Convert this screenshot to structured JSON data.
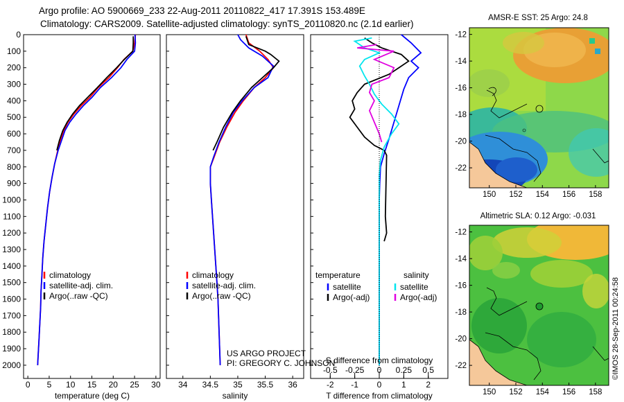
{
  "header": {
    "line1": "Argo profile: AO 5900669_233 22-Aug-2011 20110822_417 17.391S 153.489E",
    "line2": "Climatology: CARS2009. Satellite-adjusted climatology: synTS_20110820.nc (2.1d earlier)"
  },
  "credit": {
    "line1": "US ARGO PROJECT",
    "line2": "PI: GREGORY C. JOHNSON"
  },
  "stamp": "©IMOS 28-Sep-2011 00:24:58",
  "colors": {
    "climatology": "#ff0000",
    "satellite": "#0000ff",
    "argo": "#000000",
    "sal_satellite": "#00e5ee",
    "sal_argo": "#e000e0",
    "land": "#f5c89a"
  },
  "chart_data": [
    {
      "type": "line",
      "id": "temperature_profile",
      "xlabel": "temperature (deg C)",
      "ylabel": "",
      "xlim": [
        -1,
        31
      ],
      "ylim": [
        2080,
        0
      ],
      "xticks": [
        0,
        5,
        10,
        15,
        20,
        25,
        30
      ],
      "yticks": [
        0,
        100,
        200,
        300,
        400,
        500,
        600,
        700,
        800,
        900,
        1000,
        1100,
        1200,
        1300,
        1400,
        1500,
        1600,
        1700,
        1800,
        1900,
        2000
      ],
      "legend": [
        "climatology",
        "satellite-adj. clim.",
        "Argo(..raw -QC)"
      ],
      "series": [
        {
          "name": "climatology",
          "color": "#ff0000",
          "points": [
            [
              25.2,
              0
            ],
            [
              25.0,
              50
            ],
            [
              24.6,
              100
            ],
            [
              22.5,
              150
            ],
            [
              21.0,
              200
            ],
            [
              19.0,
              260
            ],
            [
              16.5,
              320
            ],
            [
              14.5,
              380
            ],
            [
              12.5,
              430
            ],
            [
              10.8,
              480
            ],
            [
              9.4,
              530
            ],
            [
              8.4,
              580
            ],
            [
              7.6,
              640
            ],
            [
              7.0,
              700
            ],
            [
              6.3,
              780
            ],
            [
              5.7,
              860
            ],
            [
              5.1,
              950
            ],
            [
              4.6,
              1050
            ],
            [
              4.2,
              1150
            ],
            [
              3.8,
              1250
            ],
            [
              3.5,
              1350
            ],
            [
              3.3,
              1450
            ],
            [
              3.1,
              1550
            ],
            [
              3.0,
              1650
            ],
            [
              2.8,
              1750
            ],
            [
              2.6,
              1850
            ],
            [
              2.4,
              1950
            ],
            [
              2.3,
              2000
            ]
          ]
        },
        {
          "name": "satellite-adj. clim.",
          "color": "#0000ff",
          "points": [
            [
              25.1,
              0
            ],
            [
              25.2,
              50
            ],
            [
              25.0,
              100
            ],
            [
              23.2,
              150
            ],
            [
              21.8,
              200
            ],
            [
              19.6,
              260
            ],
            [
              17.0,
              320
            ],
            [
              15.0,
              380
            ],
            [
              13.0,
              430
            ],
            [
              11.3,
              480
            ],
            [
              9.8,
              530
            ],
            [
              8.7,
              580
            ],
            [
              7.9,
              640
            ],
            [
              7.1,
              700
            ],
            [
              6.3,
              780
            ],
            [
              5.7,
              860
            ],
            [
              5.1,
              950
            ],
            [
              4.6,
              1050
            ],
            [
              4.2,
              1150
            ],
            [
              3.8,
              1250
            ],
            [
              3.5,
              1350
            ],
            [
              3.3,
              1450
            ],
            [
              3.1,
              1550
            ],
            [
              3.0,
              1650
            ],
            [
              2.8,
              1750
            ],
            [
              2.6,
              1850
            ],
            [
              2.4,
              1950
            ],
            [
              2.3,
              2000
            ]
          ]
        },
        {
          "name": "Argo(..raw -QC)",
          "color": "#000000",
          "points": [
            [
              24.7,
              10
            ],
            [
              24.7,
              50
            ],
            [
              24.6,
              100
            ],
            [
              22.6,
              150
            ],
            [
              20.8,
              200
            ],
            [
              18.5,
              260
            ],
            [
              16.3,
              320
            ],
            [
              14.0,
              380
            ],
            [
              12.1,
              430
            ],
            [
              10.5,
              480
            ],
            [
              9.2,
              530
            ],
            [
              8.2,
              580
            ],
            [
              7.4,
              640
            ],
            [
              6.8,
              700
            ]
          ]
        }
      ]
    },
    {
      "type": "line",
      "id": "salinity_profile",
      "xlabel": "salinity",
      "ylabel": "",
      "xlim": [
        33.7,
        36.2
      ],
      "ylim": [
        2080,
        0
      ],
      "xticks": [
        34,
        34.5,
        35,
        35.5,
        36
      ],
      "legend": [
        "climatology",
        "satellite-adj. clim.",
        "Argo(..raw -QC)"
      ],
      "series": [
        {
          "name": "climatology",
          "color": "#ff0000",
          "points": [
            [
              35.15,
              0
            ],
            [
              35.2,
              50
            ],
            [
              35.4,
              100
            ],
            [
              35.55,
              150
            ],
            [
              35.65,
              200
            ],
            [
              35.5,
              260
            ],
            [
              35.3,
              320
            ],
            [
              35.1,
              400
            ],
            [
              34.95,
              470
            ],
            [
              34.8,
              560
            ],
            [
              34.67,
              650
            ],
            [
              34.57,
              740
            ],
            [
              34.5,
              800
            ],
            [
              34.5,
              900
            ],
            [
              34.52,
              1000
            ],
            [
              34.54,
              1100
            ],
            [
              34.56,
              1200
            ],
            [
              34.58,
              1300
            ],
            [
              34.6,
              1400
            ],
            [
              34.62,
              1500
            ],
            [
              34.64,
              1600
            ],
            [
              34.65,
              1700
            ],
            [
              34.66,
              1800
            ],
            [
              34.67,
              1900
            ],
            [
              34.68,
              2000
            ]
          ]
        },
        {
          "name": "satellite-adj. clim.",
          "color": "#0000ff",
          "points": [
            [
              35.0,
              0
            ],
            [
              35.05,
              30
            ],
            [
              35.2,
              80
            ],
            [
              35.45,
              130
            ],
            [
              35.65,
              190
            ],
            [
              35.55,
              260
            ],
            [
              35.3,
              320
            ],
            [
              35.08,
              400
            ],
            [
              34.92,
              470
            ],
            [
              34.78,
              560
            ],
            [
              34.66,
              650
            ],
            [
              34.56,
              740
            ],
            [
              34.5,
              800
            ],
            [
              34.5,
              900
            ],
            [
              34.52,
              1000
            ],
            [
              34.54,
              1100
            ],
            [
              34.56,
              1200
            ],
            [
              34.58,
              1300
            ],
            [
              34.6,
              1400
            ],
            [
              34.62,
              1500
            ],
            [
              34.64,
              1600
            ],
            [
              34.65,
              1700
            ],
            [
              34.66,
              1800
            ],
            [
              34.67,
              1900
            ],
            [
              34.68,
              2000
            ]
          ]
        },
        {
          "name": "Argo(..raw -QC)",
          "color": "#000000",
          "points": [
            [
              35.15,
              10
            ],
            [
              35.2,
              60
            ],
            [
              35.5,
              100
            ],
            [
              35.6,
              120
            ],
            [
              35.75,
              160
            ],
            [
              35.65,
              200
            ],
            [
              35.45,
              260
            ],
            [
              35.25,
              320
            ],
            [
              35.05,
              400
            ],
            [
              34.9,
              470
            ],
            [
              34.74,
              560
            ],
            [
              34.62,
              650
            ],
            [
              34.55,
              700
            ]
          ]
        }
      ]
    },
    {
      "type": "line",
      "id": "difference_profile",
      "xlabel": "T difference from climatology",
      "xlabel_top": "S difference from climatology",
      "ylabel": "",
      "xlim": [
        -2.8,
        2.8
      ],
      "ylim": [
        2080,
        0
      ],
      "xticks": [
        -2,
        -1,
        0,
        1,
        2
      ],
      "xticks_s": [
        -0.5,
        -0.25,
        0,
        0.25,
        0.5
      ],
      "legend_groups": [
        {
          "title": "temperature",
          "items": [
            "satellite",
            "Argo(-adj)"
          ]
        },
        {
          "title": "salinity",
          "items": [
            "satellite",
            "Argo(-adj)"
          ]
        }
      ],
      "series": [
        {
          "name": "temperature satellite",
          "color": "#0000ff",
          "points": [
            [
              0.9,
              0
            ],
            [
              1.3,
              50
            ],
            [
              1.7,
              110
            ],
            [
              1.3,
              160
            ],
            [
              1.6,
              200
            ],
            [
              1.2,
              260
            ],
            [
              1.0,
              330
            ],
            [
              0.8,
              430
            ],
            [
              0.6,
              530
            ],
            [
              0.4,
              630
            ],
            [
              0.2,
              720
            ],
            [
              0.05,
              800
            ],
            [
              0.02,
              900
            ],
            [
              0,
              1000
            ],
            [
              0,
              1300
            ],
            [
              0,
              2000
            ]
          ]
        },
        {
          "name": "temperature Argo(-adj)",
          "color": "#000000",
          "points": [
            [
              -0.6,
              20
            ],
            [
              -0.3,
              50
            ],
            [
              0.1,
              80
            ],
            [
              0.9,
              120
            ],
            [
              1.2,
              160
            ],
            [
              0.8,
              200
            ],
            [
              0.4,
              240
            ],
            [
              -0.6,
              300
            ],
            [
              -0.9,
              350
            ],
            [
              -1.1,
              400
            ],
            [
              -1.0,
              450
            ],
            [
              -1.2,
              500
            ],
            [
              -0.9,
              560
            ],
            [
              -0.6,
              620
            ],
            [
              -0.2,
              670
            ],
            [
              0.2,
              700
            ],
            [
              0.3,
              730
            ],
            [
              0.25,
              1100
            ],
            [
              0.3,
              1200
            ],
            [
              0.2,
              1250
            ]
          ]
        },
        {
          "name": "salinity satellite",
          "color": "#00e5ee",
          "points": [
            [
              -0.3,
              20
            ],
            [
              -1.0,
              40
            ],
            [
              -0.6,
              80
            ],
            [
              0.0,
              110
            ],
            [
              -0.6,
              150
            ],
            [
              -0.8,
              190
            ],
            [
              -0.6,
              250
            ],
            [
              -0.4,
              300
            ],
            [
              -0.2,
              360
            ],
            [
              0.1,
              420
            ],
            [
              0.5,
              480
            ],
            [
              0.8,
              540
            ],
            [
              0.5,
              600
            ],
            [
              0.2,
              680
            ],
            [
              0.05,
              760
            ],
            [
              0,
              850
            ],
            [
              0,
              2000
            ]
          ]
        },
        {
          "name": "salinity Argo(-adj)",
          "color": "#e000e0",
          "points": [
            [
              -0.1,
              60
            ],
            [
              -0.9,
              80
            ],
            [
              0.6,
              100
            ],
            [
              -0.2,
              150
            ],
            [
              0.6,
              200
            ],
            [
              0.4,
              260
            ],
            [
              -0.3,
              300
            ],
            [
              -0.4,
              350
            ],
            [
              -0.2,
              400
            ],
            [
              -0.4,
              460
            ],
            [
              -0.2,
              530
            ],
            [
              0.0,
              600
            ],
            [
              0.1,
              650
            ]
          ]
        }
      ]
    },
    {
      "type": "heatmap",
      "id": "sst_map",
      "title": "AMSR-E SST: 25 Argo: 24.8",
      "xlim": [
        148.5,
        159
      ],
      "ylim": [
        -23.5,
        -11.5
      ],
      "xticks": [
        150,
        152,
        154,
        156,
        158
      ],
      "yticks": [
        -12,
        -14,
        -16,
        -18,
        -20,
        -22
      ],
      "argo_position": [
        153.489,
        -17.391
      ]
    },
    {
      "type": "heatmap",
      "id": "sla_map",
      "title": "Altimetric SLA: 0.12 Argo: -0.031",
      "xlim": [
        148.5,
        159
      ],
      "ylim": [
        -23.5,
        -11.5
      ],
      "xticks": [
        150,
        152,
        154,
        156,
        158
      ],
      "yticks": [
        -12,
        -14,
        -16,
        -18,
        -20,
        -22
      ],
      "argo_position": [
        153.489,
        -17.391
      ]
    }
  ]
}
